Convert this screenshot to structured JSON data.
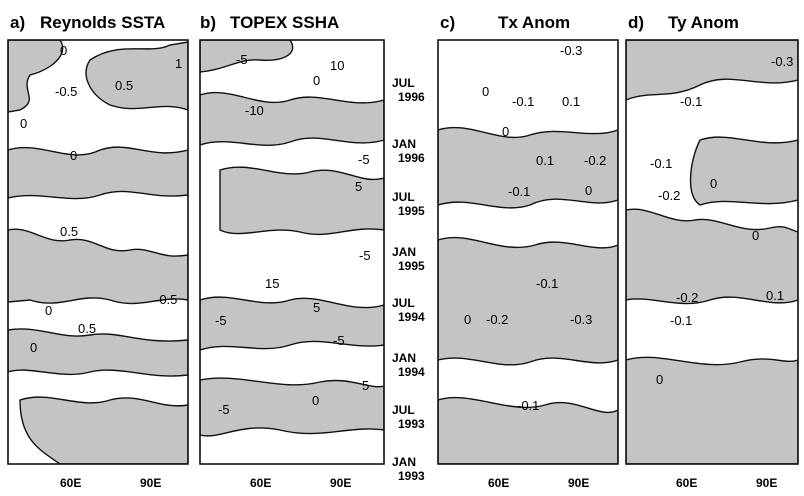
{
  "panels": [
    {
      "id": "a",
      "letter": "a)",
      "title": "Reynolds SSTA",
      "labels": [
        "0",
        "-0.5",
        "0.5",
        "1",
        "0",
        "0",
        "0.5",
        "-0.5",
        "0",
        "0.5",
        "0"
      ]
    },
    {
      "id": "b",
      "letter": "b)",
      "title": "TOPEX SSHA",
      "labels": [
        "-5",
        "10",
        "0",
        "-10",
        "-5",
        "5",
        "-5",
        "15",
        "5",
        "-5",
        "-5",
        "5",
        "0",
        "-5"
      ]
    },
    {
      "id": "c",
      "letter": "c)",
      "title": "Tx Anom",
      "labels": [
        "-0.3",
        "-0.1",
        "0.1",
        "0",
        "0",
        "0.1",
        "-0.2",
        "-0.1",
        "0",
        "-0.1",
        "-0.2",
        "-0.3",
        "0",
        "-0.1"
      ]
    },
    {
      "id": "d",
      "letter": "d)",
      "title": "Ty Anom",
      "labels": [
        "-0.3",
        "-0.1",
        "-0.1",
        "-0.2",
        "0",
        "0",
        "-0.2",
        "-0.1",
        "0.1",
        "0"
      ]
    }
  ],
  "x_ticks": [
    "60E",
    "90E"
  ],
  "time_axis": [
    {
      "month": "JUL",
      "year": "1996"
    },
    {
      "month": "JAN",
      "year": "1996"
    },
    {
      "month": "JUL",
      "year": "1995"
    },
    {
      "month": "JAN",
      "year": "1995"
    },
    {
      "month": "JUL",
      "year": "1994"
    },
    {
      "month": "JAN",
      "year": "1994"
    },
    {
      "month": "JUL",
      "year": "1993"
    },
    {
      "month": "JAN",
      "year": "1993"
    }
  ],
  "colors": {
    "shade": "#c4c4c4",
    "line": "#111111",
    "background": "#ffffff"
  }
}
